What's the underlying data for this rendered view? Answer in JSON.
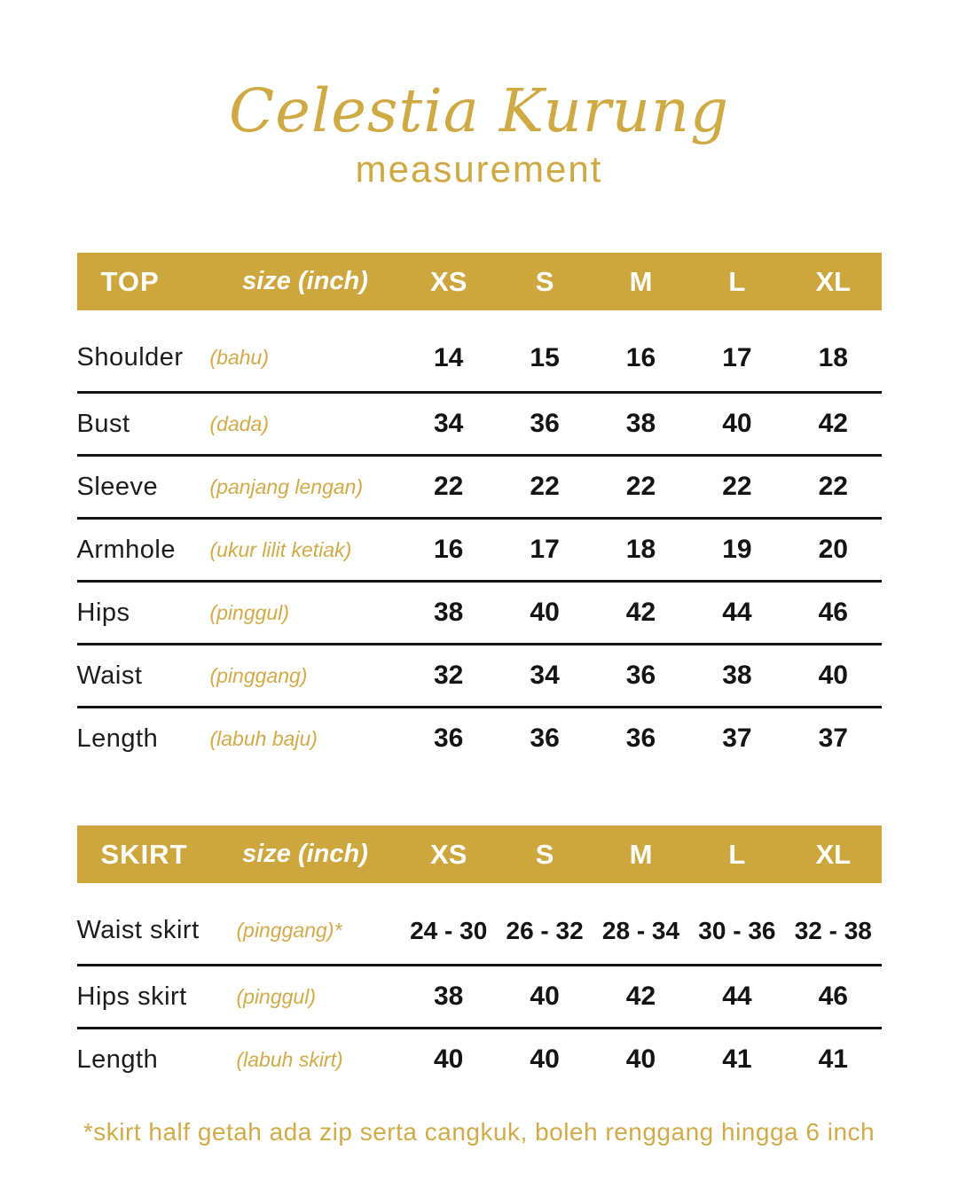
{
  "title": "Celestia Kurung",
  "subtitle": "measurement",
  "colors": {
    "gold_bar": "#CDA73E",
    "gold_text": "#D1AB4A",
    "ink": "#141414",
    "background": "#FFFFFF"
  },
  "size_columns": [
    "XS",
    "S",
    "M",
    "L",
    "XL"
  ],
  "top_table": {
    "name": "TOP",
    "unit_label": "size (inch)",
    "rows": [
      {
        "label": "Shoulder",
        "malay": "(bahu)",
        "values": [
          "14",
          "15",
          "16",
          "17",
          "18"
        ]
      },
      {
        "label": "Bust",
        "malay": "(dada)",
        "values": [
          "34",
          "36",
          "38",
          "40",
          "42"
        ]
      },
      {
        "label": "Sleeve",
        "malay": "(panjang lengan)",
        "values": [
          "22",
          "22",
          "22",
          "22",
          "22"
        ]
      },
      {
        "label": "Armhole",
        "malay": "(ukur lilit ketiak)",
        "values": [
          "16",
          "17",
          "18",
          "19",
          "20"
        ]
      },
      {
        "label": "Hips",
        "malay": "(pinggul)",
        "values": [
          "38",
          "40",
          "42",
          "44",
          "46"
        ]
      },
      {
        "label": "Waist",
        "malay": "(pinggang)",
        "values": [
          "32",
          "34",
          "36",
          "38",
          "40"
        ]
      },
      {
        "label": "Length",
        "malay": "(labuh baju)",
        "values": [
          "36",
          "36",
          "36",
          "37",
          "37"
        ]
      }
    ]
  },
  "skirt_table": {
    "name": "SKIRT",
    "unit_label": "size (inch)",
    "rows": [
      {
        "label": "Waist skirt",
        "malay": "(pinggang)*",
        "values": [
          "24 - 30",
          "26 - 32",
          "28 - 34",
          "30 - 36",
          "32 - 38"
        ]
      },
      {
        "label": "Hips skirt",
        "malay": "(pinggul)",
        "values": [
          "38",
          "40",
          "42",
          "44",
          "46"
        ]
      },
      {
        "label": "Length",
        "malay": "(labuh skirt)",
        "values": [
          "40",
          "40",
          "40",
          "41",
          "41"
        ]
      }
    ]
  },
  "footnote": "*skirt half getah ada zip serta cangkuk, boleh renggang hingga 6 inch"
}
